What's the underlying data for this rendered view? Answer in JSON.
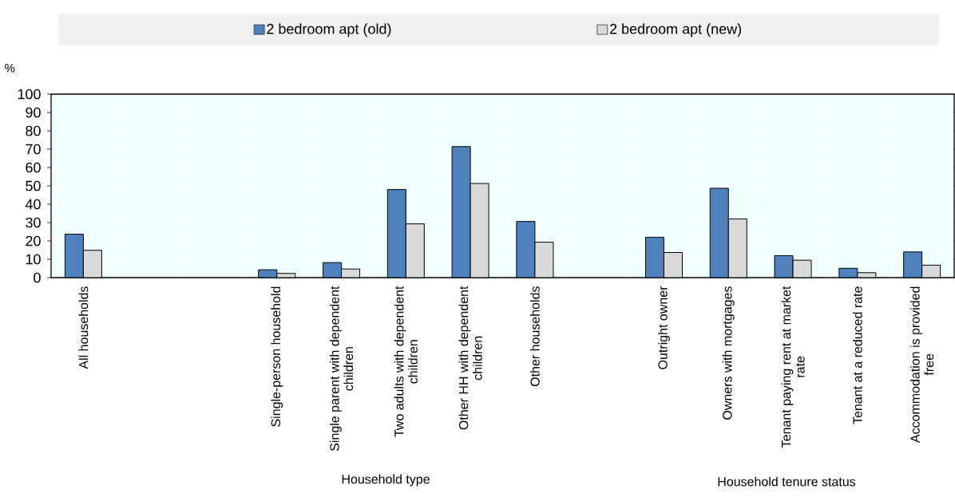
{
  "chart_data": {
    "type": "bar",
    "categories": [
      "All households",
      null,
      null,
      "Single-person household",
      "Single parent with dependent children",
      "Two adults with dependent children",
      "Other HH with dependent children",
      "Other households",
      null,
      "Outright owner",
      "Owners with mortgages",
      "Tenant paying rent at market rate",
      "Tenant at a reduced rate",
      "Accommodation is provided free"
    ],
    "series": [
      {
        "name": "2 bedroom apt (old)",
        "color": "#4f81bd",
        "values": [
          23.7,
          null,
          null,
          4.3,
          8.2,
          48.0,
          71.4,
          30.6,
          null,
          22.0,
          48.7,
          12.0,
          5.1,
          14.0
        ]
      },
      {
        "name": "2 bedroom apt (new)",
        "color": "#d9d9d9",
        "values": [
          14.9,
          null,
          null,
          2.3,
          4.7,
          29.3,
          51.3,
          19.3,
          null,
          13.7,
          32.0,
          9.5,
          2.7,
          6.8
        ]
      }
    ],
    "ylabel": "%",
    "ylim": [
      0,
      100
    ],
    "yticks": [
      0,
      10,
      20,
      30,
      40,
      50,
      60,
      70,
      80,
      90,
      100
    ],
    "grid": true,
    "legend": "top",
    "annotations": [
      "Household type",
      "Household tenure status"
    ]
  }
}
